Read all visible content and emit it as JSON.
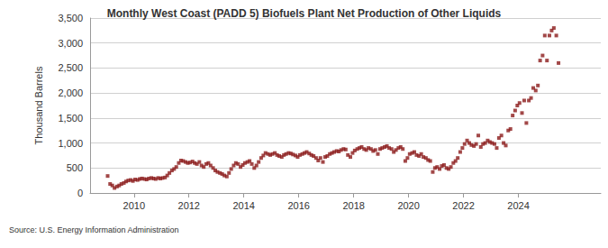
{
  "chart_data": {
    "type": "scatter",
    "title": "Monthly West Coast (PADD 5) Biofuels Plant Net Production of Other Liquids",
    "y_label": "Thousand Barrels",
    "annotations": [
      "Source: U.S. Energy Information Administration"
    ],
    "color": "#8b1a1a",
    "marker": "rect",
    "grid": true,
    "xlim": [
      2008.4,
      2027
    ],
    "xticks": [
      2010,
      2012,
      2014,
      2016,
      2018,
      2020,
      2022,
      2024
    ],
    "ylim": [
      0,
      3500
    ],
    "yticks": [
      0,
      500,
      {
        "value": 1000,
        "label": "1,000"
      },
      {
        "value": 1500,
        "label": "1,500"
      },
      {
        "value": 2000,
        "label": "2,000"
      },
      {
        "value": 2500,
        "label": "2,500"
      },
      {
        "value": 3000,
        "label": "3,000"
      },
      {
        "value": 3500,
        "label": "3,500"
      }
    ],
    "x": [
      2009.04,
      2009.13,
      2009.21,
      2009.29,
      2009.38,
      2009.46,
      2009.54,
      2009.63,
      2009.71,
      2009.79,
      2009.88,
      2009.96,
      2010.04,
      2010.13,
      2010.21,
      2010.29,
      2010.38,
      2010.46,
      2010.54,
      2010.63,
      2010.71,
      2010.79,
      2010.88,
      2010.96,
      2011.04,
      2011.13,
      2011.21,
      2011.29,
      2011.38,
      2011.46,
      2011.54,
      2011.63,
      2011.71,
      2011.79,
      2011.88,
      2011.96,
      2012.04,
      2012.13,
      2012.21,
      2012.29,
      2012.38,
      2012.46,
      2012.54,
      2012.63,
      2012.71,
      2012.79,
      2012.88,
      2012.96,
      2013.04,
      2013.13,
      2013.21,
      2013.29,
      2013.38,
      2013.46,
      2013.54,
      2013.63,
      2013.71,
      2013.79,
      2013.88,
      2013.96,
      2014.04,
      2014.13,
      2014.21,
      2014.29,
      2014.38,
      2014.46,
      2014.54,
      2014.63,
      2014.71,
      2014.79,
      2014.88,
      2014.96,
      2015.04,
      2015.13,
      2015.21,
      2015.29,
      2015.38,
      2015.46,
      2015.54,
      2015.63,
      2015.71,
      2015.79,
      2015.88,
      2015.96,
      2016.04,
      2016.13,
      2016.21,
      2016.29,
      2016.38,
      2016.46,
      2016.54,
      2016.63,
      2016.71,
      2016.79,
      2016.88,
      2016.96,
      2017.04,
      2017.13,
      2017.21,
      2017.29,
      2017.38,
      2017.46,
      2017.54,
      2017.63,
      2017.71,
      2017.79,
      2017.88,
      2017.96,
      2018.04,
      2018.13,
      2018.21,
      2018.29,
      2018.38,
      2018.46,
      2018.54,
      2018.63,
      2018.71,
      2018.79,
      2018.88,
      2018.96,
      2019.04,
      2019.13,
      2019.21,
      2019.29,
      2019.38,
      2019.46,
      2019.54,
      2019.63,
      2019.71,
      2019.79,
      2019.88,
      2019.96,
      2020.04,
      2020.13,
      2020.21,
      2020.29,
      2020.38,
      2020.46,
      2020.54,
      2020.63,
      2020.71,
      2020.79,
      2020.88,
      2020.96,
      2021.04,
      2021.13,
      2021.21,
      2021.29,
      2021.38,
      2021.46,
      2021.54,
      2021.63,
      2021.71,
      2021.79,
      2021.88,
      2021.96,
      2022.04,
      2022.13,
      2022.21,
      2022.29,
      2022.38,
      2022.46,
      2022.54,
      2022.63,
      2022.71,
      2022.79,
      2022.88,
      2022.96,
      2023.04,
      2023.13,
      2023.21,
      2023.29,
      2023.38,
      2023.46,
      2023.54,
      2023.63,
      2023.71,
      2023.79,
      2023.88,
      2023.96,
      2024.04,
      2024.13,
      2024.21,
      2024.29,
      2024.38,
      2024.46,
      2024.54,
      2024.63,
      2024.71,
      2024.79,
      2024.88,
      2024.96,
      2025.04,
      2025.13,
      2025.21,
      2025.29,
      2025.38,
      2025.46
    ],
    "values": [
      340,
      180,
      150,
      100,
      130,
      150,
      180,
      200,
      230,
      250,
      260,
      240,
      270,
      260,
      280,
      290,
      280,
      270,
      290,
      300,
      290,
      280,
      300,
      290,
      300,
      310,
      350,
      400,
      450,
      480,
      520,
      600,
      650,
      640,
      620,
      600,
      610,
      630,
      600,
      580,
      620,
      550,
      520,
      580,
      600,
      550,
      500,
      450,
      420,
      400,
      380,
      350,
      330,
      400,
      480,
      550,
      600,
      580,
      520,
      560,
      600,
      620,
      640,
      580,
      500,
      550,
      620,
      700,
      750,
      800,
      780,
      760,
      780,
      800,
      760,
      740,
      720,
      760,
      780,
      800,
      790,
      770,
      750,
      720,
      760,
      780,
      800,
      820,
      790,
      760,
      740,
      700,
      650,
      700,
      620,
      720,
      740,
      780,
      800,
      820,
      840,
      830,
      860,
      880,
      870,
      760,
      720,
      800,
      850,
      880,
      900,
      920,
      880,
      860,
      900,
      880,
      840,
      860,
      780,
      880,
      900,
      920,
      940,
      900,
      880,
      820,
      860,
      900,
      920,
      880,
      640,
      700,
      780,
      800,
      820,
      760,
      740,
      780,
      720,
      700,
      660,
      640,
      420,
      500,
      520,
      480,
      540,
      560,
      500,
      480,
      520,
      600,
      640,
      700,
      820,
      900,
      980,
      1050,
      1000,
      960,
      940,
      980,
      1150,
      920,
      980,
      1000,
      1050,
      1020,
      1000,
      980,
      900,
      1100,
      1150,
      1000,
      950,
      1250,
      1280,
      1550,
      1650,
      1750,
      1800,
      1600,
      1850,
      1400,
      1850,
      1900,
      2100,
      2050,
      2150,
      2650,
      2750,
      3150,
      2650,
      3150,
      3250,
      3300,
      3150,
      2600
    ]
  }
}
